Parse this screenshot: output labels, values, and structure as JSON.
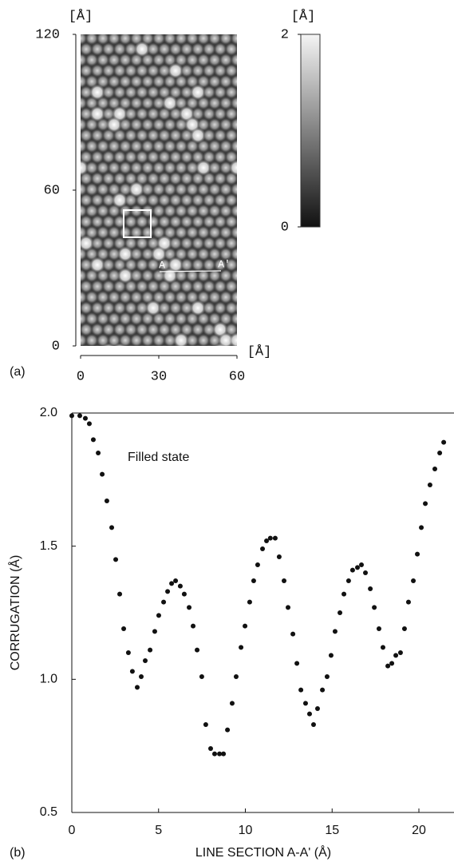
{
  "chart_data": [
    {
      "type": "image",
      "panel_label": "(a)",
      "x_unit": "[Å]",
      "y_unit": "[Å]",
      "c_unit": "[Å]",
      "xlim": [
        0,
        60
      ],
      "xticks": [
        0,
        30,
        60
      ],
      "ylim": [
        0,
        120
      ],
      "yticks": [
        0,
        60,
        120
      ],
      "clim": [
        0,
        2
      ],
      "cticks": [
        0,
        2
      ],
      "annotations": [
        "A",
        "A'"
      ]
    },
    {
      "type": "scatter",
      "panel_label": "(b)",
      "annotation": "Filled state",
      "x_label": "LINE SECTION A-A' (Å)",
      "y_label": "CORRUGATION (Å)",
      "color": "#111111",
      "xlim": [
        0,
        22
      ],
      "xticks": [
        0,
        5,
        10,
        15,
        20
      ],
      "ylim": [
        0.5,
        2.0
      ],
      "yticks": [
        {
          "value": 0.5,
          "label": "0.5"
        },
        {
          "value": 1.0,
          "label": "1.0"
        },
        {
          "value": 1.5,
          "label": "1.5"
        },
        {
          "value": 2.0,
          "label": "2.0"
        }
      ],
      "x": [
        0,
        0.46,
        0.78,
        1.01,
        1.24,
        1.52,
        1.75,
        2.02,
        2.3,
        2.53,
        2.76,
        2.99,
        3.26,
        3.49,
        3.77,
        4.0,
        4.23,
        4.51,
        4.78,
        5.01,
        5.29,
        5.52,
        5.75,
        5.98,
        6.25,
        6.48,
        6.76,
        6.99,
        7.22,
        7.49,
        7.72,
        8.0,
        8.23,
        8.51,
        8.74,
        8.97,
        9.24,
        9.47,
        9.75,
        9.98,
        10.25,
        10.48,
        10.71,
        10.99,
        11.22,
        11.44,
        11.72,
        11.95,
        12.23,
        12.46,
        12.74,
        12.97,
        13.2,
        13.47,
        13.7,
        13.93,
        14.16,
        14.44,
        14.71,
        14.94,
        15.17,
        15.45,
        15.68,
        15.95,
        16.18,
        16.46,
        16.69,
        16.92,
        17.2,
        17.43,
        17.7,
        17.93,
        18.21,
        18.44,
        18.67,
        18.94,
        19.17,
        19.4,
        19.68,
        19.91,
        20.14,
        20.37,
        20.64,
        20.92,
        21.2,
        21.43
      ],
      "values": [
        1.99,
        1.99,
        1.98,
        1.96,
        1.9,
        1.85,
        1.77,
        1.67,
        1.57,
        1.45,
        1.32,
        1.19,
        1.1,
        1.03,
        0.97,
        1.01,
        1.07,
        1.11,
        1.18,
        1.24,
        1.29,
        1.33,
        1.36,
        1.37,
        1.35,
        1.32,
        1.27,
        1.2,
        1.11,
        1.01,
        0.83,
        0.74,
        0.72,
        0.72,
        0.72,
        0.81,
        0.91,
        1.01,
        1.12,
        1.2,
        1.29,
        1.37,
        1.43,
        1.49,
        1.52,
        1.53,
        1.53,
        1.46,
        1.37,
        1.27,
        1.17,
        1.06,
        0.96,
        0.91,
        0.87,
        0.83,
        0.89,
        0.96,
        1.01,
        1.09,
        1.18,
        1.25,
        1.32,
        1.37,
        1.41,
        1.42,
        1.43,
        1.4,
        1.34,
        1.27,
        1.19,
        1.12,
        1.05,
        1.06,
        1.09,
        1.1,
        1.19,
        1.29,
        1.37,
        1.47,
        1.57,
        1.66,
        1.73,
        1.79,
        1.85,
        1.89
      ]
    }
  ]
}
